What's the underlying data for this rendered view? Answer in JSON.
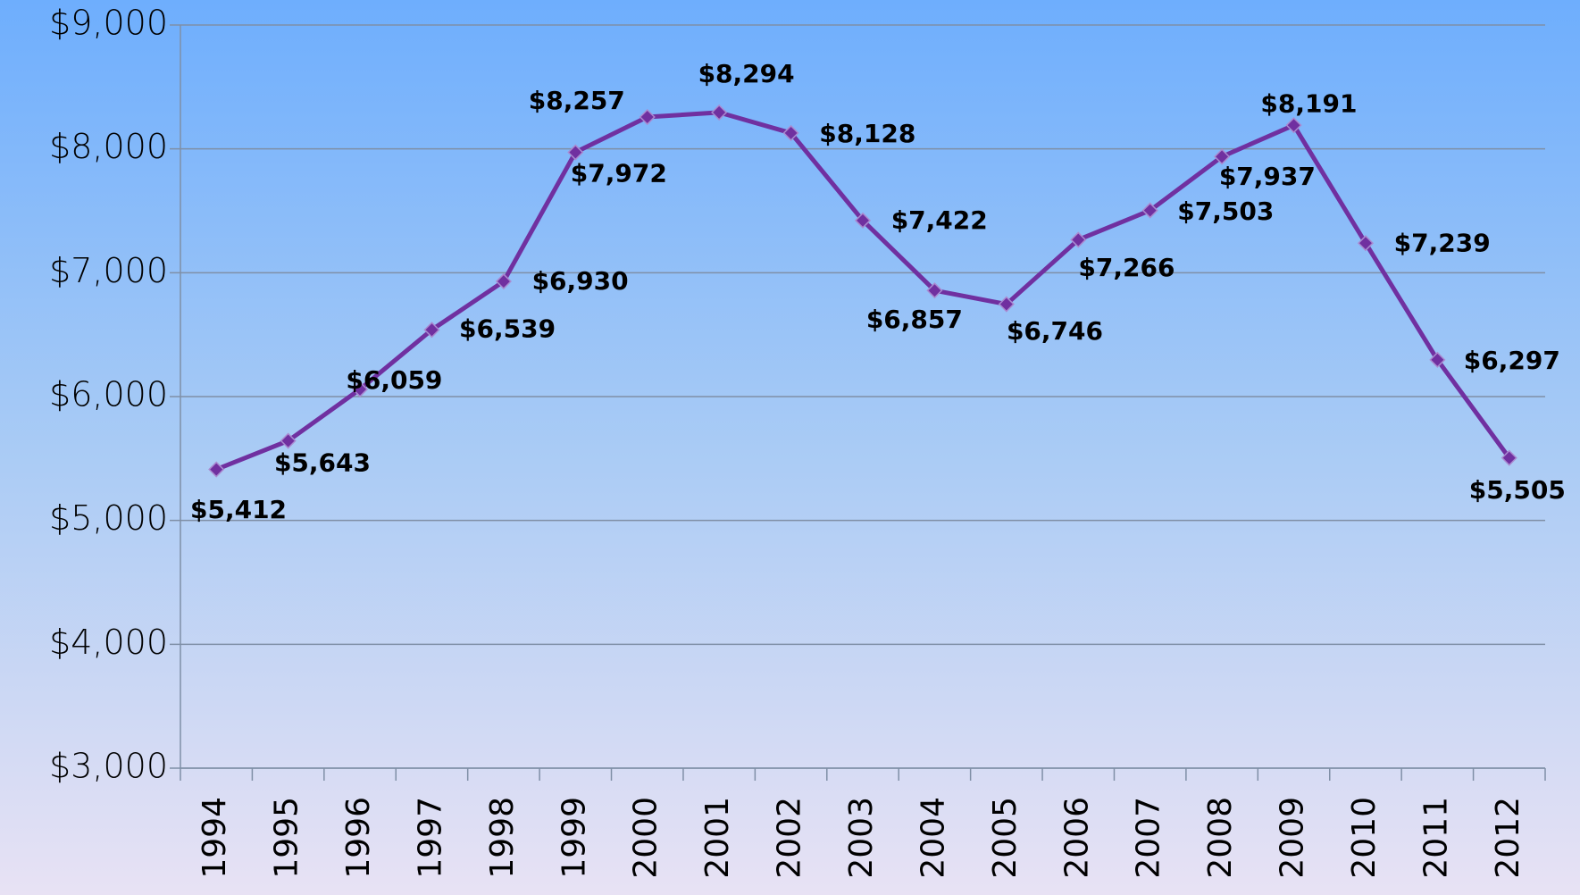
{
  "chart_data": {
    "type": "line",
    "categories": [
      "1994",
      "1995",
      "1996",
      "1997",
      "1998",
      "1999",
      "2000",
      "2001",
      "2002",
      "2003",
      "2004",
      "2005",
      "2006",
      "2007",
      "2008",
      "2009",
      "2010",
      "2011",
      "2012"
    ],
    "series": [
      {
        "color": "#7030a0",
        "values": [
          5412,
          5643,
          6059,
          6539,
          6930,
          7972,
          8257,
          8294,
          8128,
          7422,
          6857,
          6746,
          7266,
          7503,
          7937,
          8191,
          7239,
          6297,
          5505
        ],
        "value_labels": [
          "$5,412",
          "$5,643",
          "$6,059",
          "$6,539",
          "$6,930",
          "$7,972",
          "$8,257",
          "$8,294",
          "$8,128",
          "$7,422",
          "$6,857",
          "$6,746",
          "$7,266",
          "$7,503",
          "$7,937",
          "$8,191",
          "$7,239",
          "$6,297",
          "$5,505"
        ]
      }
    ],
    "ylim": [
      3000,
      9000
    ],
    "yticks": [
      {
        "value": 3000,
        "label": "$3,000"
      },
      {
        "value": 4000,
        "label": "$4,000"
      },
      {
        "value": 5000,
        "label": "$5,000"
      },
      {
        "value": 6000,
        "label": "$6,000"
      },
      {
        "value": 7000,
        "label": "$7,000"
      },
      {
        "value": 8000,
        "label": "$8,000"
      },
      {
        "value": 9000,
        "label": "$9,000"
      }
    ],
    "grid": true
  }
}
